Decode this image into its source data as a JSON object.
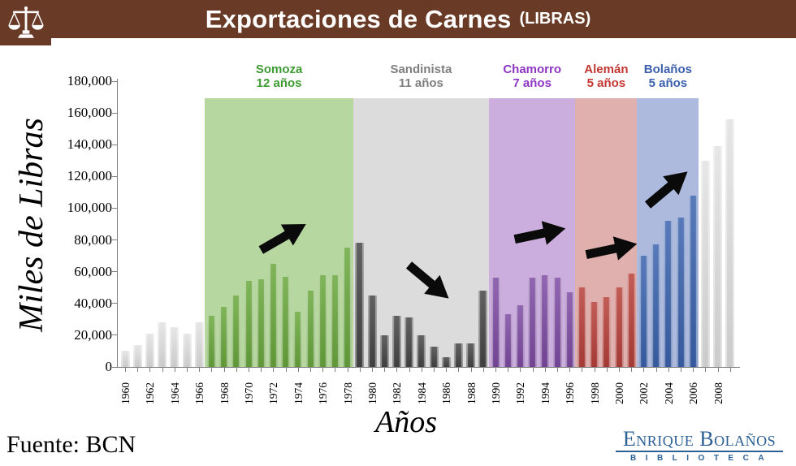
{
  "header": {
    "title": "Exportaciones de Carnes",
    "subtitle": "(LIBRAS)",
    "bg_color": "#693a26",
    "icon": "scales-of-justice"
  },
  "chart_data": {
    "type": "bar",
    "title": "Exportaciones de Carnes (LIBRAS)",
    "xlabel": "Años",
    "ylabel": "Miles de Libras",
    "ylim": [
      0,
      180000
    ],
    "ytick_step": 20000,
    "y_tick_labels": [
      "0",
      "20,000",
      "40,000",
      "60,000",
      "80,000",
      "100,000",
      "120,000",
      "140,000",
      "160,000",
      "180,000"
    ],
    "x_tick_labels": [
      "1960",
      "1962",
      "1964",
      "1966",
      "1968",
      "1970",
      "1972",
      "1974",
      "1976",
      "1978",
      "1980",
      "1982",
      "1984",
      "1986",
      "1988",
      "1990",
      "1992",
      "1994",
      "1996",
      "1998",
      "2000",
      "2002",
      "2004",
      "2006",
      "2008"
    ],
    "years": [
      1960,
      1961,
      1962,
      1963,
      1964,
      1965,
      1966,
      1967,
      1968,
      1969,
      1970,
      1971,
      1972,
      1973,
      1974,
      1975,
      1976,
      1977,
      1978,
      1979,
      1980,
      1981,
      1982,
      1983,
      1984,
      1985,
      1986,
      1987,
      1988,
      1989,
      1990,
      1991,
      1992,
      1993,
      1994,
      1995,
      1996,
      1997,
      1998,
      1999,
      2000,
      2001,
      2002,
      2003,
      2004,
      2005,
      2006,
      2007,
      2008,
      2009
    ],
    "values": [
      10000,
      14000,
      21000,
      28000,
      25000,
      21000,
      28000,
      32000,
      38000,
      45000,
      54000,
      55000,
      65000,
      57000,
      35000,
      48000,
      58000,
      58000,
      75000,
      78000,
      45000,
      20000,
      32000,
      31000,
      20000,
      13000,
      6000,
      15000,
      15000,
      48000,
      56000,
      33000,
      39000,
      56000,
      58000,
      56000,
      47000,
      50000,
      41000,
      44000,
      50000,
      59000,
      70000,
      77000,
      92000,
      94000,
      108000,
      130000,
      139000,
      156000
    ],
    "default_bar_color": "#e2e2e2",
    "grid": false,
    "legend": false,
    "eras": [
      {
        "name": "Somoza",
        "duration_label": "12 años",
        "start_year": 1967,
        "end_year": 1978,
        "bar_color": "#6aa83e",
        "band_color": "#b6d7a0",
        "label_color": "#3d9b32",
        "trend": "up"
      },
      {
        "name": "Sandinista",
        "duration_label": "11 años",
        "start_year": 1979,
        "end_year": 1989,
        "bar_color": "#464646",
        "band_color": "#dcdcdc",
        "label_color": "#7f7f7f",
        "trend": "down"
      },
      {
        "name": "Chamorro",
        "duration_label": "7 años",
        "start_year": 1990,
        "end_year": 1996,
        "bar_color": "#7e4ba2",
        "band_color": "#cbaede",
        "label_color": "#8e35c4",
        "trend": "flat"
      },
      {
        "name": "Alemán",
        "duration_label": "5 años",
        "start_year": 1997,
        "end_year": 2001,
        "bar_color": "#b7403a",
        "band_color": "#dfb0ad",
        "label_color": "#c23732",
        "trend": "flat"
      },
      {
        "name": "Bolaños",
        "duration_label": "5 años",
        "start_year": 2002,
        "end_year": 2006,
        "bar_color": "#3b63ae",
        "band_color": "#adbade",
        "label_color": "#3a5fad",
        "trend": "up"
      }
    ]
  },
  "footer": {
    "source": "Fuente: BCN",
    "logo": {
      "line1": "Enrique Bolaños",
      "line2": "BIBLIOTECA"
    }
  }
}
